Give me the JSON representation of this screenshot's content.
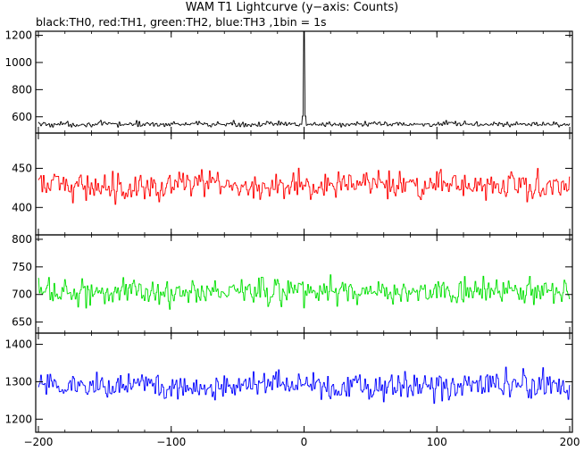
{
  "title": "WAM T1 Lightcurve (y−axis: Counts)",
  "subtitle": "black:TH0, red:TH1, green:TH2, blue:TH3 ,1bin = 1s",
  "chart_data": {
    "type": "line",
    "x_range": [
      -202,
      202
    ],
    "x_ticks": [
      -200,
      -100,
      0,
      100,
      200
    ],
    "x_tick_labels": [
      "−200",
      "−100",
      "0",
      "100",
      "200"
    ],
    "bin_seconds": 1,
    "panels": [
      {
        "name": "TH0",
        "color": "#000000",
        "ylim": [
          480,
          1230
        ],
        "y_ticks": [
          600,
          800,
          1000,
          1200
        ],
        "y_tick_labels": [
          "600",
          "800",
          "1000",
          "1200"
        ],
        "baseline": 545,
        "noise": 25,
        "spike": {
          "x": 0,
          "peak": 1230
        }
      },
      {
        "name": "TH1",
        "color": "#ff0000",
        "ylim": [
          365,
          495
        ],
        "y_ticks": [
          400,
          450
        ],
        "y_tick_labels": [
          "400",
          "450"
        ],
        "baseline": 428,
        "noise": 22
      },
      {
        "name": "TH2",
        "color": "#00e000",
        "ylim": [
          630,
          808
        ],
        "y_ticks": [
          650,
          700,
          750,
          800
        ],
        "y_tick_labels": [
          "650",
          "700",
          "750",
          "800"
        ],
        "baseline": 705,
        "noise": 30
      },
      {
        "name": "TH3",
        "color": "#0000ff",
        "ylim": [
          1165,
          1430
        ],
        "y_ticks": [
          1200,
          1300,
          1400
        ],
        "y_tick_labels": [
          "1200",
          "1300",
          "1400"
        ],
        "baseline": 1290,
        "noise": 45
      }
    ]
  }
}
